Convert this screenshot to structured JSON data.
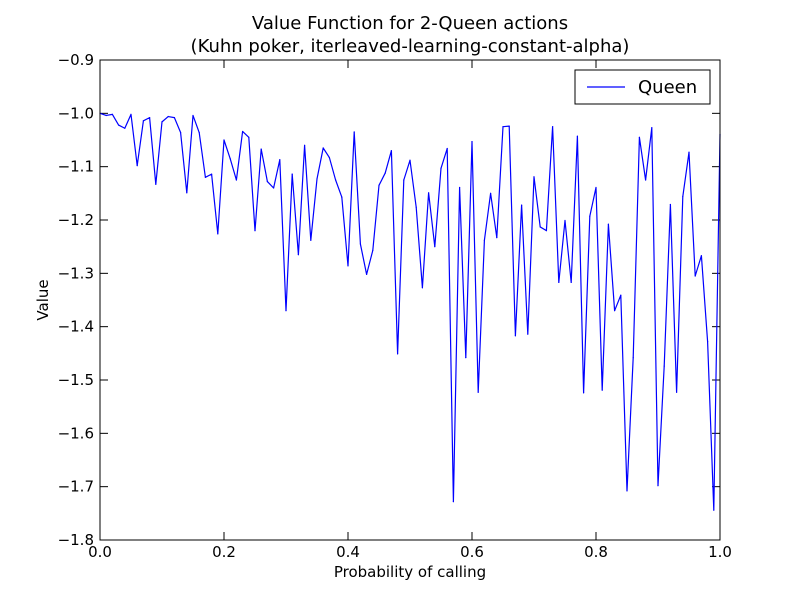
{
  "chart_data": {
    "type": "line",
    "title_line1": "Value Function for 2-Queen actions",
    "title_line2": "(Kuhn poker, iterleaved-learning-constant-alpha)",
    "xlabel": "Probability of calling",
    "ylabel": "Value",
    "xlim": [
      0.0,
      1.0
    ],
    "ylim": [
      -1.8,
      -0.9
    ],
    "x_ticks": [
      0.0,
      0.2,
      0.4,
      0.6,
      0.8,
      1.0
    ],
    "x_tick_labels": [
      "0.0",
      "0.2",
      "0.4",
      "0.6",
      "0.8",
      "1.0"
    ],
    "y_ticks": [
      -0.9,
      -1.0,
      -1.1,
      -1.2,
      -1.3,
      -1.4,
      -1.5,
      -1.6,
      -1.7,
      -1.8
    ],
    "y_tick_labels": [
      "−0.9",
      "−1.0",
      "−1.1",
      "−1.2",
      "−1.3",
      "−1.4",
      "−1.5",
      "−1.6",
      "−1.7",
      "−1.8"
    ],
    "grid": false,
    "legend_position": "top-right",
    "series": [
      {
        "name": "Queen",
        "color": "#0000ff",
        "x": [
          0.0,
          0.01,
          0.02,
          0.03,
          0.04,
          0.05,
          0.06,
          0.07,
          0.08,
          0.09,
          0.1,
          0.11,
          0.12,
          0.13,
          0.14,
          0.15,
          0.16,
          0.17,
          0.18,
          0.19,
          0.2,
          0.21,
          0.22,
          0.23,
          0.24,
          0.25,
          0.26,
          0.27,
          0.28,
          0.29,
          0.3,
          0.31,
          0.32,
          0.33,
          0.34,
          0.35,
          0.36,
          0.37,
          0.38,
          0.39,
          0.4,
          0.41,
          0.42,
          0.43,
          0.44,
          0.45,
          0.46,
          0.47,
          0.48,
          0.49,
          0.5,
          0.51,
          0.52,
          0.53,
          0.54,
          0.55,
          0.56,
          0.57,
          0.58,
          0.59,
          0.6,
          0.61,
          0.62,
          0.63,
          0.64,
          0.65,
          0.66,
          0.67,
          0.68,
          0.69,
          0.7,
          0.71,
          0.72,
          0.73,
          0.74,
          0.75,
          0.76,
          0.77,
          0.78,
          0.79,
          0.8,
          0.81,
          0.82,
          0.83,
          0.84,
          0.85,
          0.86,
          0.87,
          0.88,
          0.89,
          0.9,
          0.91,
          0.92,
          0.93,
          0.94,
          0.95,
          0.96,
          0.97,
          0.98,
          0.99,
          1.0
        ],
        "y": [
          -1.0,
          -1.004,
          -1.002,
          -1.022,
          -1.028,
          -1.002,
          -1.098,
          -1.014,
          -1.008,
          -1.133,
          -1.016,
          -1.006,
          -1.008,
          -1.036,
          -1.149,
          -1.004,
          -1.036,
          -1.12,
          -1.114,
          -1.226,
          -1.05,
          -1.085,
          -1.125,
          -1.034,
          -1.045,
          -1.22,
          -1.067,
          -1.128,
          -1.14,
          -1.087,
          -1.37,
          -1.114,
          -1.265,
          -1.06,
          -1.238,
          -1.123,
          -1.065,
          -1.083,
          -1.125,
          -1.157,
          -1.286,
          -1.035,
          -1.245,
          -1.302,
          -1.257,
          -1.135,
          -1.112,
          -1.07,
          -1.451,
          -1.125,
          -1.088,
          -1.176,
          -1.327,
          -1.149,
          -1.25,
          -1.103,
          -1.066,
          -1.728,
          -1.139,
          -1.458,
          -1.053,
          -1.523,
          -1.238,
          -1.15,
          -1.233,
          -1.025,
          -1.024,
          -1.417,
          -1.172,
          -1.414,
          -1.119,
          -1.213,
          -1.22,
          -1.025,
          -1.317,
          -1.201,
          -1.317,
          -1.043,
          -1.524,
          -1.193,
          -1.139,
          -1.519,
          -1.208,
          -1.37,
          -1.341,
          -1.708,
          -1.458,
          -1.045,
          -1.125,
          -1.027,
          -1.698,
          -1.474,
          -1.171,
          -1.523,
          -1.156,
          -1.073,
          -1.305,
          -1.267,
          -1.428,
          -1.744,
          -1.04
        ]
      }
    ]
  }
}
